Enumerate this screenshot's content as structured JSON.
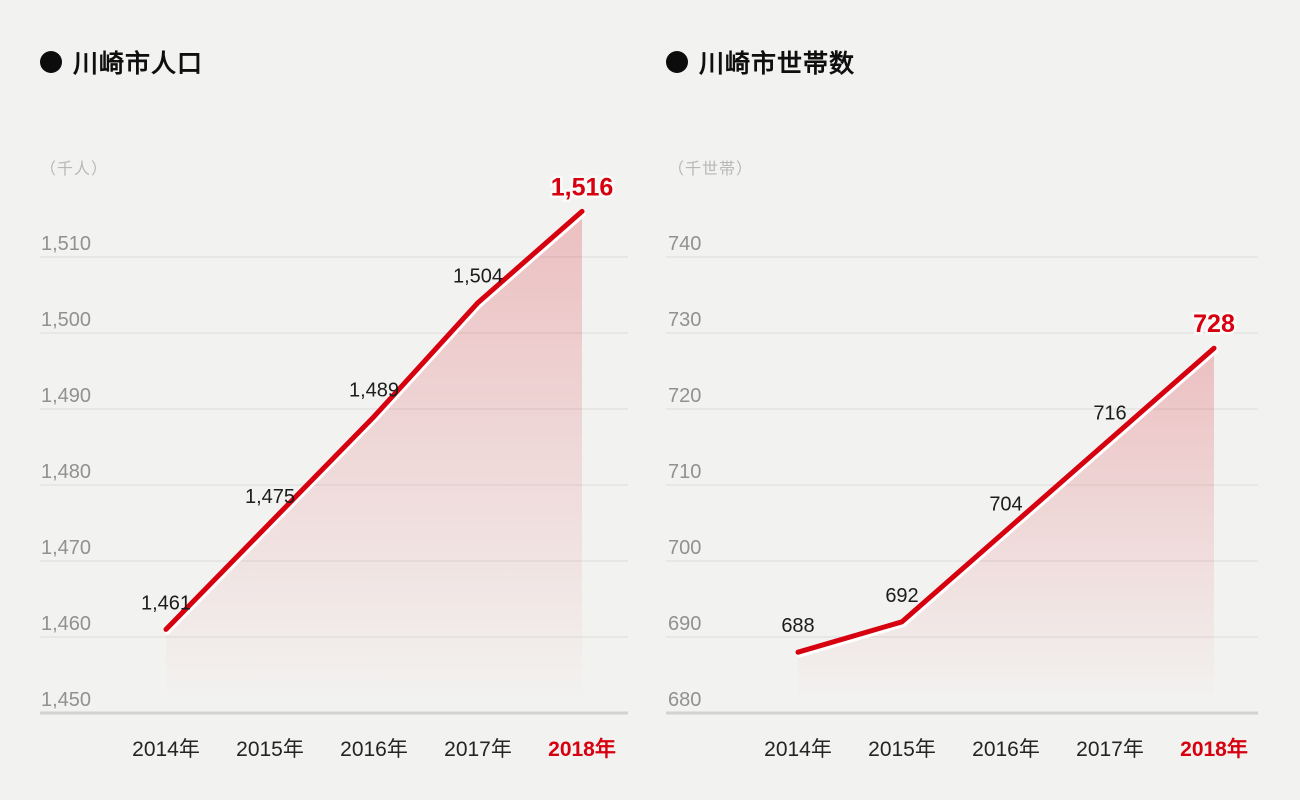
{
  "page": {
    "background": "#f2f2f0"
  },
  "colors": {
    "accent_red": "#d6000f",
    "gridline": "#dcdcda",
    "axis_baseline": "#d2d2d0",
    "y_tick_text": "#919191",
    "value_label_text": "#1c1c1c",
    "x_label_text": "#242424",
    "unit_text": "#b8b8b6",
    "title_text": "#0f0f0f"
  },
  "chart_data": [
    {
      "type": "area",
      "title": "川崎市人口",
      "unit_label": "（千人）",
      "categories": [
        "2014年",
        "2015年",
        "2016年",
        "2017年",
        "2018年"
      ],
      "values": [
        1461,
        1475,
        1489,
        1504,
        1516
      ],
      "value_labels": [
        "1,461",
        "1,475",
        "1,489",
        "1,504",
        "1,516"
      ],
      "highlight_index": 4,
      "highlight_category": "2018年",
      "ylim": [
        1450,
        1520
      ],
      "ytick_start": 1450,
      "ytick_step": 10,
      "ytick_labels": [
        "1,450",
        "1,460",
        "1,470",
        "1,480",
        "1,490",
        "1,500",
        "1,510"
      ],
      "grid": true,
      "legend": false
    },
    {
      "type": "area",
      "title": "川崎市世帯数",
      "unit_label": "（千世帯）",
      "categories": [
        "2014年",
        "2015年",
        "2016年",
        "2017年",
        "2018年"
      ],
      "values": [
        688,
        692,
        704,
        716,
        728
      ],
      "value_labels": [
        "688",
        "692",
        "704",
        "716",
        "728"
      ],
      "highlight_index": 4,
      "highlight_category": "2018年",
      "ylim": [
        680,
        750
      ],
      "ytick_start": 680,
      "ytick_step": 10,
      "ytick_labels": [
        "680",
        "690",
        "700",
        "710",
        "720",
        "730",
        "740"
      ],
      "grid": true,
      "legend": false
    }
  ]
}
